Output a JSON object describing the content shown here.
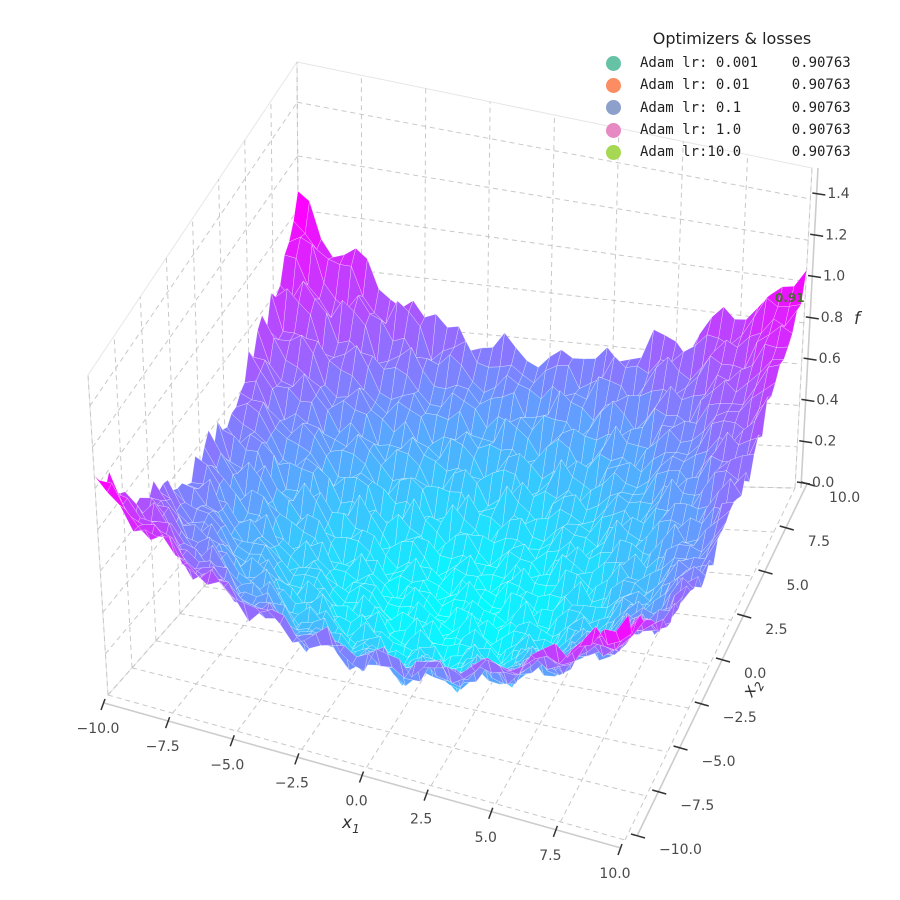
{
  "chart_data": {
    "type": "surface3d",
    "title": "",
    "xlabel": "x",
    "xlabel_sub": "1",
    "ylabel": "x",
    "ylabel_sub": "2",
    "zlabel": "f",
    "xlim": [
      -10,
      10
    ],
    "ylim": [
      -10,
      10
    ],
    "zlim": [
      0,
      1.5
    ],
    "x_ticks": [
      "−10.0",
      "−7.5",
      "−5.0",
      "−2.5",
      "0.0",
      "2.5",
      "5.0",
      "7.5",
      "10.0"
    ],
    "y_ticks": [
      "−10.0",
      "−7.5",
      "−5.0",
      "−2.5",
      "0.0",
      "2.5",
      "5.0",
      "7.5",
      "10.0"
    ],
    "z_ticks": [
      "0.0",
      "0.2",
      "0.4",
      "0.6",
      "0.8",
      "1.0",
      "1.2",
      "1.4"
    ],
    "surface": {
      "function": "noisy bowl, f ≈ (x1² + x2²)/200 + noise",
      "min_value": 0.0,
      "max_value": 1.5,
      "colormap": "cool",
      "colormap_low": "#00ffff",
      "colormap_high": "#ff00ff",
      "wire_color": "#ffffff"
    },
    "point_annotation": {
      "text": "0.91",
      "x": 10,
      "y": 10,
      "z": 0.91,
      "color": "#4a6b2e"
    },
    "grid": true,
    "legend_placement": "top-right",
    "legend": {
      "title": "Optimizers & losses",
      "entries": [
        {
          "label": "Adam lr: 0.001    0.90763",
          "color": "#66c2a5"
        },
        {
          "label": "Adam lr: 0.01     0.90763",
          "color": "#fc8d62"
        },
        {
          "label": "Adam lr: 0.1      0.90763",
          "color": "#8da0cb"
        },
        {
          "label": "Adam lr: 1.0      0.90763",
          "color": "#e78ac3"
        },
        {
          "label": "Adam lr:10.0      0.90763",
          "color": "#a6d854"
        }
      ]
    }
  }
}
